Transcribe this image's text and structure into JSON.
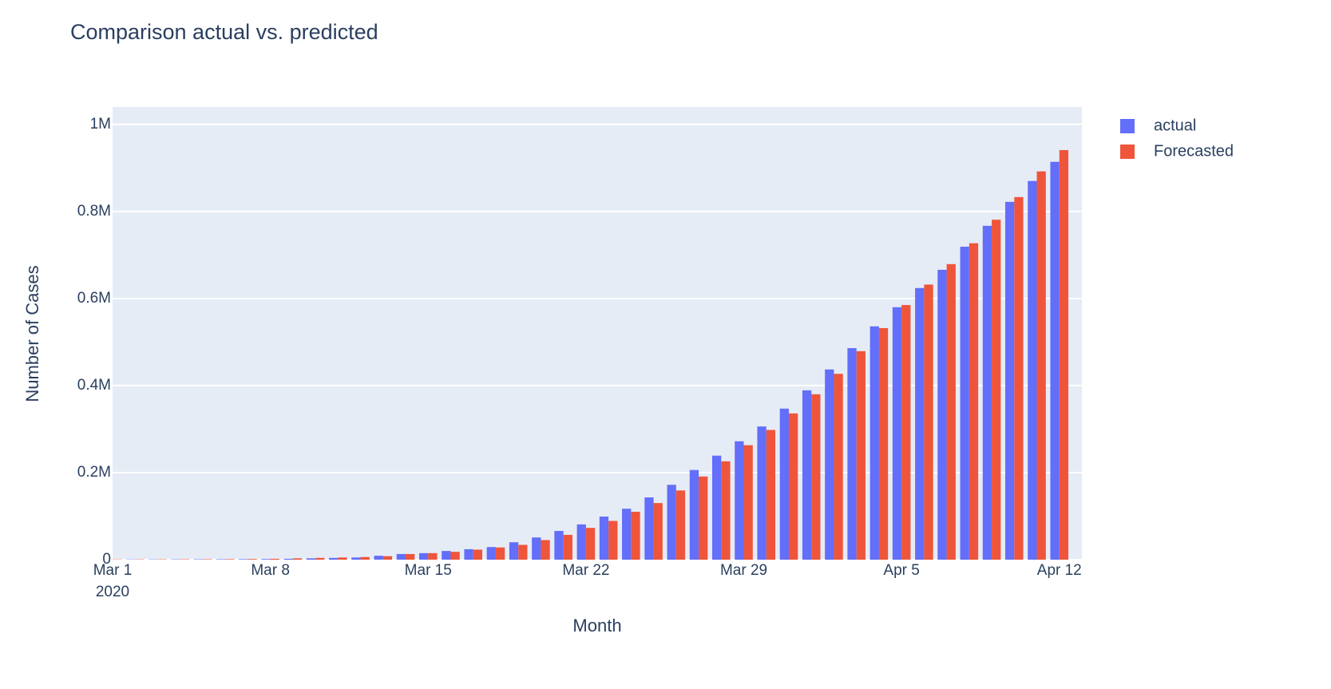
{
  "chart_data": {
    "type": "bar",
    "title": "Comparison actual  vs. predicted",
    "x_label": "Month",
    "y_label": "Number of Cases",
    "x_year_label": "2020",
    "x": [
      "2020-03-01",
      "2020-03-02",
      "2020-03-03",
      "2020-03-04",
      "2020-03-05",
      "2020-03-06",
      "2020-03-07",
      "2020-03-08",
      "2020-03-09",
      "2020-03-10",
      "2020-03-11",
      "2020-03-12",
      "2020-03-13",
      "2020-03-14",
      "2020-03-15",
      "2020-03-16",
      "2020-03-17",
      "2020-03-18",
      "2020-03-19",
      "2020-03-20",
      "2020-03-21",
      "2020-03-22",
      "2020-03-23",
      "2020-03-24",
      "2020-03-25",
      "2020-03-26",
      "2020-03-27",
      "2020-03-28",
      "2020-03-29",
      "2020-03-30",
      "2020-03-31",
      "2020-04-01",
      "2020-04-02",
      "2020-04-03",
      "2020-04-04",
      "2020-04-05",
      "2020-04-06",
      "2020-04-07",
      "2020-04-08",
      "2020-04-09",
      "2020-04-10",
      "2020-04-11",
      "2020-04-12"
    ],
    "series": [
      {
        "name": "actual",
        "color": "#636efa",
        "values": [
          500,
          600,
          700,
          800,
          900,
          1000,
          1200,
          1500,
          2000,
          3000,
          4000,
          5000,
          9000,
          13000,
          15000,
          20000,
          24000,
          29000,
          40000,
          51000,
          66000,
          81000,
          99000,
          117000,
          143000,
          172000,
          206000,
          239000,
          272000,
          306000,
          347000,
          389000,
          437000,
          486000,
          536000,
          580000,
          624000,
          666000,
          719000,
          767000,
          822000,
          870000,
          914000
        ]
      },
      {
        "name": "Forecasted",
        "color": "#EF553B",
        "values": [
          600,
          700,
          800,
          900,
          1000,
          1200,
          1500,
          2000,
          3000,
          4000,
          5000,
          6000,
          8000,
          13000,
          15000,
          18000,
          23000,
          28000,
          34000,
          45000,
          57000,
          73000,
          89000,
          110000,
          130000,
          159000,
          191000,
          226000,
          263000,
          298000,
          336000,
          380000,
          427000,
          479000,
          532000,
          585000,
          632000,
          679000,
          727000,
          781000,
          833000,
          892000,
          941000
        ]
      }
    ],
    "xlim": [
      "2020-03-01",
      "2020-04-13"
    ],
    "xticks": [
      {
        "value": "2020-03-01",
        "label": "Mar 1"
      },
      {
        "value": "2020-03-08",
        "label": "Mar 8"
      },
      {
        "value": "2020-03-15",
        "label": "Mar 15"
      },
      {
        "value": "2020-03-22",
        "label": "Mar 22"
      },
      {
        "value": "2020-03-29",
        "label": "Mar 29"
      },
      {
        "value": "2020-04-05",
        "label": "Apr 5"
      },
      {
        "value": "2020-04-12",
        "label": "Apr 12"
      }
    ],
    "ylim": [
      0,
      1040000
    ],
    "yticks": [
      0,
      {
        "value": 200000,
        "label": "0.2M"
      },
      {
        "value": 400000,
        "label": "0.4M"
      },
      {
        "value": 600000,
        "label": "0.6M"
      },
      {
        "value": 800000,
        "label": "0.8M"
      },
      {
        "value": 1000000,
        "label": "1M"
      }
    ],
    "grid": true,
    "legend": "top-right",
    "plot_bg": "#e5ecf6"
  }
}
